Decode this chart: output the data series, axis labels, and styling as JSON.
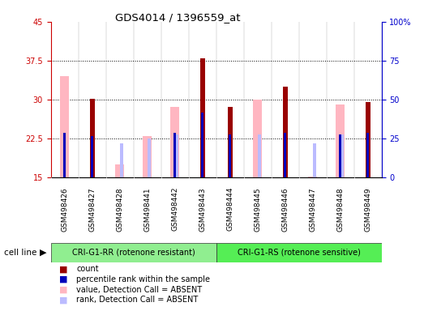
{
  "title": "GDS4014 / 1396559_at",
  "samples": [
    "GSM498426",
    "GSM498427",
    "GSM498428",
    "GSM498441",
    "GSM498442",
    "GSM498443",
    "GSM498444",
    "GSM498445",
    "GSM498446",
    "GSM498447",
    "GSM498448",
    "GSM498449"
  ],
  "group1_name": "CRI-G1-RR (rotenone resistant)",
  "group2_name": "CRI-G1-RS (rotenone sensitive)",
  "group1_color": "#90EE90",
  "group2_color": "#55EE55",
  "ylim_left": [
    15,
    45
  ],
  "ylim_right": [
    0,
    100
  ],
  "yticks_left": [
    15,
    22.5,
    30,
    37.5,
    45
  ],
  "yticks_right": [
    0,
    25,
    50,
    75,
    100
  ],
  "ytick_labels_left": [
    "15",
    "22.5",
    "30",
    "37.5",
    "45"
  ],
  "ytick_labels_right": [
    "0",
    "25",
    "50",
    "75",
    "100%"
  ],
  "count_values": [
    null,
    30.2,
    null,
    null,
    null,
    38.0,
    28.5,
    null,
    32.5,
    null,
    null,
    29.5
  ],
  "rank_values": [
    23.5,
    23.0,
    null,
    null,
    23.5,
    27.5,
    23.2,
    null,
    23.5,
    null,
    23.3,
    23.5
  ],
  "absent_value_values": [
    34.5,
    null,
    17.5,
    23.0,
    28.5,
    null,
    null,
    30.0,
    null,
    15.2,
    29.0,
    null
  ],
  "absent_rank_values": [
    null,
    null,
    21.5,
    22.5,
    23.3,
    null,
    null,
    23.3,
    null,
    21.5,
    23.3,
    null
  ],
  "count_color": "#990000",
  "rank_color": "#0000BB",
  "absent_value_color": "#FFB6C1",
  "absent_rank_color": "#BBBBFF",
  "left_tick_color": "#CC0000",
  "right_tick_color": "#0000CC",
  "legend_items": [
    {
      "label": "count",
      "color": "#990000"
    },
    {
      "label": "percentile rank within the sample",
      "color": "#0000BB"
    },
    {
      "label": "value, Detection Call = ABSENT",
      "color": "#FFB6C1"
    },
    {
      "label": "rank, Detection Call = ABSENT",
      "color": "#BBBBFF"
    }
  ]
}
